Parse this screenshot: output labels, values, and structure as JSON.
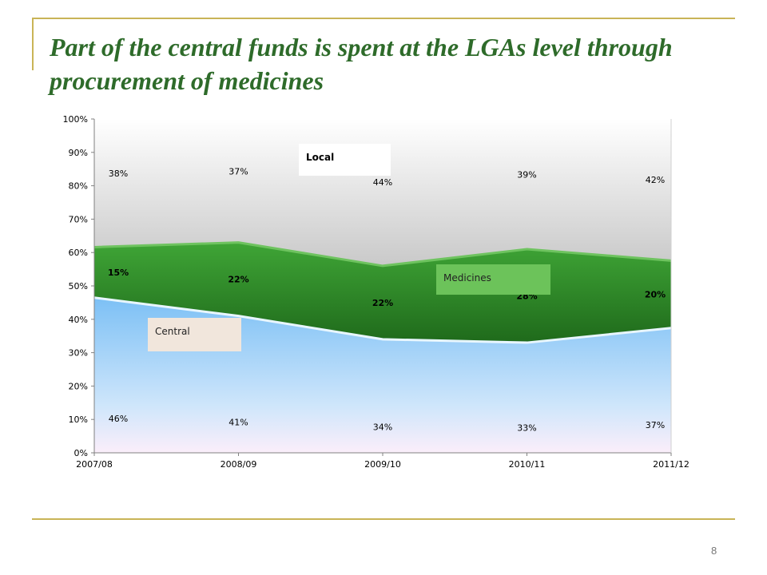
{
  "slide": {
    "title": "Part of the central funds is spent at the LGAs level through procurement of medicines",
    "page_number": "8"
  },
  "chart_data": {
    "type": "area",
    "stacked": true,
    "percent": true,
    "categories": [
      "2007/08",
      "2008/09",
      "2009/10",
      "2010/11",
      "2011/12"
    ],
    "series": [
      {
        "name": "Central",
        "values": [
          46,
          41,
          34,
          33,
          37
        ],
        "color": "#8ec9f5",
        "labels": [
          "46%",
          "41%",
          "34%",
          "33%",
          "37%"
        ]
      },
      {
        "name": "Medicines",
        "values": [
          15,
          22,
          22,
          28,
          20
        ],
        "color": "#2f8a2a",
        "labels": [
          "15%",
          "22%",
          "22%",
          "28%",
          "20%"
        ]
      },
      {
        "name": "Local",
        "values": [
          38,
          37,
          44,
          39,
          42
        ],
        "color": "#d9d9d9",
        "labels": [
          "38%",
          "37%",
          "44%",
          "39%",
          "42%"
        ]
      }
    ],
    "ylim": [
      0,
      100
    ],
    "yticks": [
      "0%",
      "10%",
      "20%",
      "30%",
      "40%",
      "50%",
      "60%",
      "70%",
      "80%",
      "90%",
      "100%"
    ],
    "grid": false,
    "legend": "inline labels"
  }
}
